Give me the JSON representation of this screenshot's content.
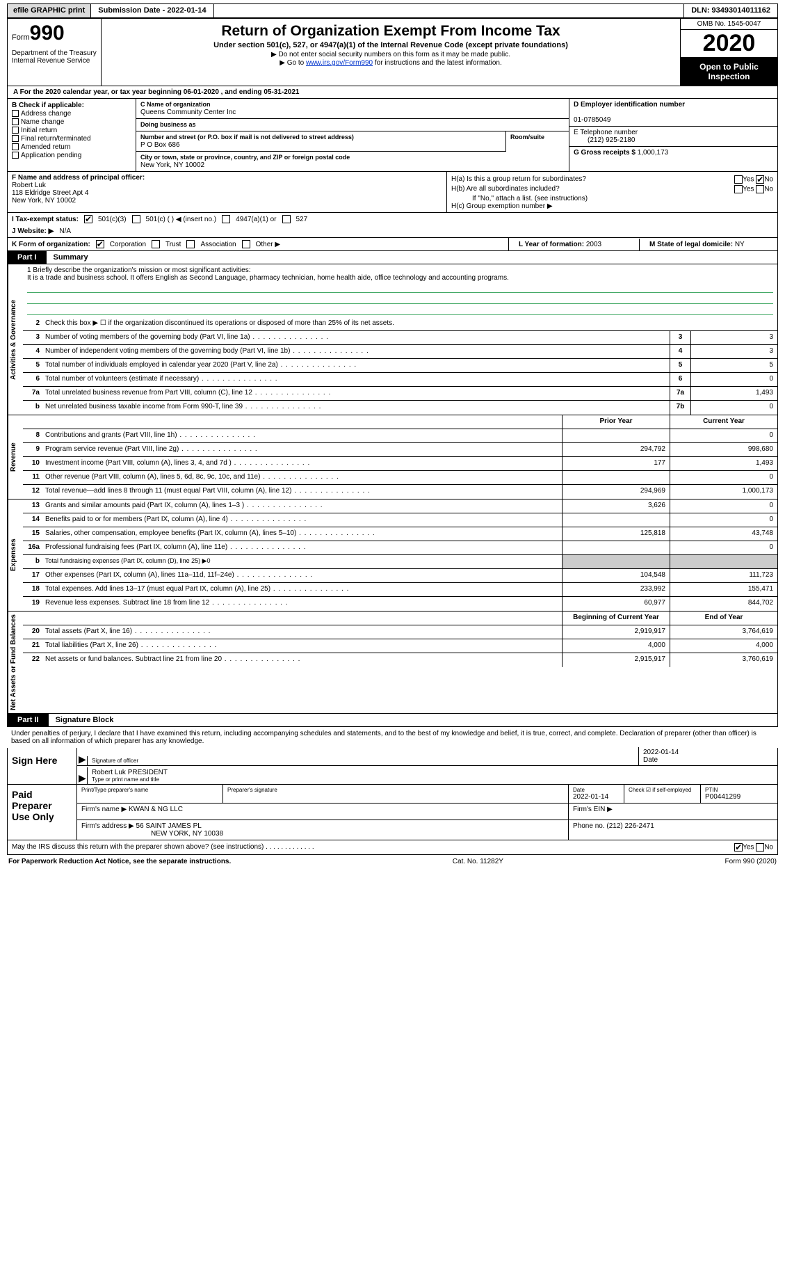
{
  "topbar": {
    "efile_btn": "efile GRAPHIC print",
    "submission": "Submission Date - 2022-01-14",
    "dln": "DLN: 93493014011162"
  },
  "header": {
    "form_prefix": "Form",
    "form_num": "990",
    "dept": "Department of the Treasury\nInternal Revenue Service",
    "title": "Return of Organization Exempt From Income Tax",
    "sub": "Under section 501(c), 527, or 4947(a)(1) of the Internal Revenue Code (except private foundations)",
    "note1": "▶ Do not enter social security numbers on this form as it may be made public.",
    "note2_pre": "▶ Go to ",
    "note2_link": "www.irs.gov/Form990",
    "note2_post": " for instructions and the latest information.",
    "omb": "OMB No. 1545-0047",
    "year": "2020",
    "open": "Open to Public Inspection"
  },
  "period": "A For the 2020 calendar year, or tax year beginning 06-01-2020    , and ending 05-31-2021",
  "B": {
    "title": "B Check if applicable:",
    "items": [
      "Address change",
      "Name change",
      "Initial return",
      "Final return/terminated",
      "Amended return",
      "Application pending"
    ]
  },
  "C": {
    "name_label": "C Name of organization",
    "name": "Queens Community Center Inc",
    "dba_label": "Doing business as",
    "addr_label": "Number and street (or P.O. box if mail is not delivered to street address)",
    "room_label": "Room/suite",
    "addr": "P O Box 686",
    "city_label": "City or town, state or province, country, and ZIP or foreign postal code",
    "city": "New York, NY   10002"
  },
  "D": {
    "label": "D Employer identification number",
    "val": "01-0785049"
  },
  "E": {
    "label": "E Telephone number",
    "val": "(212) 925-2180"
  },
  "G": {
    "label": "G Gross receipts $",
    "val": "1,000,173"
  },
  "F": {
    "label": "F  Name and address of principal officer:",
    "name": "Robert Luk",
    "addr1": "118 Eldridge Street Apt 4",
    "addr2": "New York, NY  10002"
  },
  "H": {
    "a": "H(a)  Is this a group return for subordinates?",
    "b": "H(b)  Are all subordinates included?",
    "b_note": "If \"No,\" attach a list. (see instructions)",
    "c": "H(c)  Group exemption number ▶",
    "yes": "Yes",
    "no": "No"
  },
  "I": {
    "label": "I   Tax-exempt status:",
    "o1": "501(c)(3)",
    "o2": "501(c) (    ) ◀ (insert no.)",
    "o3": "4947(a)(1) or",
    "o4": "527"
  },
  "J": {
    "label": "J   Website: ▶",
    "val": "N/A"
  },
  "K": {
    "label": "K Form of organization:",
    "o1": "Corporation",
    "o2": "Trust",
    "o3": "Association",
    "o4": "Other ▶"
  },
  "L": {
    "label": "L Year of formation:",
    "val": "2003"
  },
  "M": {
    "label": "M State of legal domicile:",
    "val": "NY"
  },
  "parts": {
    "p1": "Part I",
    "p1_title": "Summary",
    "p2": "Part II",
    "p2_title": "Signature Block"
  },
  "vlabels": {
    "gov": "Activities & Governance",
    "rev": "Revenue",
    "exp": "Expenses",
    "net": "Net Assets or Fund Balances"
  },
  "mission": {
    "q": "1   Briefly describe the organization's mission or most significant activities:",
    "text": "It is a trade and business school. It offers English as Second Language, pharmacy technician, home health aide, office technology and accounting programs."
  },
  "gov_rows": [
    {
      "n": "2",
      "t": "Check this box ▶ ☐  if the organization discontinued its operations or disposed of more than 25% of its net assets."
    },
    {
      "n": "3",
      "t": "Number of voting members of the governing body (Part VI, line 1a)",
      "c": "3",
      "v": "3"
    },
    {
      "n": "4",
      "t": "Number of independent voting members of the governing body (Part VI, line 1b)",
      "c": "4",
      "v": "3"
    },
    {
      "n": "5",
      "t": "Total number of individuals employed in calendar year 2020 (Part V, line 2a)",
      "c": "5",
      "v": "5"
    },
    {
      "n": "6",
      "t": "Total number of volunteers (estimate if necessary)",
      "c": "6",
      "v": "0"
    },
    {
      "n": "7a",
      "t": "Total unrelated business revenue from Part VIII, column (C), line 12",
      "c": "7a",
      "v": "1,493"
    },
    {
      "n": "b",
      "t": "Net unrelated business taxable income from Form 990-T, line 39",
      "c": "7b",
      "v": "0"
    }
  ],
  "col_hdr": {
    "prior": "Prior Year",
    "curr": "Current Year",
    "beg": "Beginning of Current Year",
    "end": "End of Year"
  },
  "rev_rows": [
    {
      "n": "8",
      "t": "Contributions and grants (Part VIII, line 1h)",
      "p": "",
      "c": "0"
    },
    {
      "n": "9",
      "t": "Program service revenue (Part VIII, line 2g)",
      "p": "294,792",
      "c": "998,680"
    },
    {
      "n": "10",
      "t": "Investment income (Part VIII, column (A), lines 3, 4, and 7d )",
      "p": "177",
      "c": "1,493"
    },
    {
      "n": "11",
      "t": "Other revenue (Part VIII, column (A), lines 5, 6d, 8c, 9c, 10c, and 11e)",
      "p": "",
      "c": "0"
    },
    {
      "n": "12",
      "t": "Total revenue—add lines 8 through 11 (must equal Part VIII, column (A), line 12)",
      "p": "294,969",
      "c": "1,000,173"
    }
  ],
  "exp_rows": [
    {
      "n": "13",
      "t": "Grants and similar amounts paid (Part IX, column (A), lines 1–3 )",
      "p": "3,626",
      "c": "0"
    },
    {
      "n": "14",
      "t": "Benefits paid to or for members (Part IX, column (A), line 4)",
      "p": "",
      "c": "0"
    },
    {
      "n": "15",
      "t": "Salaries, other compensation, employee benefits (Part IX, column (A), lines 5–10)",
      "p": "125,818",
      "c": "43,748"
    },
    {
      "n": "16a",
      "t": "Professional fundraising fees (Part IX, column (A), line 11e)",
      "p": "",
      "c": "0"
    },
    {
      "n": "b",
      "t": "Total fundraising expenses (Part IX, column (D), line 25) ▶0",
      "gray": true
    },
    {
      "n": "17",
      "t": "Other expenses (Part IX, column (A), lines 11a–11d, 11f–24e)",
      "p": "104,548",
      "c": "111,723"
    },
    {
      "n": "18",
      "t": "Total expenses. Add lines 13–17 (must equal Part IX, column (A), line 25)",
      "p": "233,992",
      "c": "155,471"
    },
    {
      "n": "19",
      "t": "Revenue less expenses. Subtract line 18 from line 12",
      "p": "60,977",
      "c": "844,702"
    }
  ],
  "net_rows": [
    {
      "n": "20",
      "t": "Total assets (Part X, line 16)",
      "p": "2,919,917",
      "c": "3,764,619"
    },
    {
      "n": "21",
      "t": "Total liabilities (Part X, line 26)",
      "p": "4,000",
      "c": "4,000"
    },
    {
      "n": "22",
      "t": "Net assets or fund balances. Subtract line 21 from line 20",
      "p": "2,915,917",
      "c": "3,760,619"
    }
  ],
  "sig": {
    "penalty": "Under penalties of perjury, I declare that I have examined this return, including accompanying schedules and statements, and to the best of my knowledge and belief, it is true, correct, and complete. Declaration of preparer (other than officer) is based on all information of which preparer has any knowledge.",
    "sign_here": "Sign Here",
    "sig_officer_lbl": "Signature of officer",
    "date_lbl": "Date",
    "sig_date": "2022-01-14",
    "name_title": "Robert Luk  PRESIDENT",
    "name_lbl": "Type or print name and title"
  },
  "prep": {
    "title": "Paid Preparer Use Only",
    "h1": "Print/Type preparer's name",
    "h2": "Preparer's signature",
    "h3": "Date",
    "h3v": "2022-01-14",
    "h4": "Check ☑ if self-employed",
    "h5": "PTIN",
    "h5v": "P00441299",
    "firm_name_lbl": "Firm's name   ▶",
    "firm_name": "KWAN & NG LLC",
    "firm_ein_lbl": "Firm's EIN ▶",
    "firm_addr_lbl": "Firm's address ▶",
    "firm_addr": "56 SAINT JAMES PL",
    "firm_city": "NEW YORK, NY  10038",
    "phone_lbl": "Phone no.",
    "phone": "(212) 226-2471"
  },
  "discuss": "May the IRS discuss this return with the preparer shown above? (see instructions)",
  "footer": {
    "left": "For Paperwork Reduction Act Notice, see the separate instructions.",
    "mid": "Cat. No. 11282Y",
    "right": "Form 990 (2020)"
  },
  "colors": {
    "accent": "#000000",
    "gray": "#cccccc",
    "link": "#0033cc",
    "bg": "#ffffff",
    "line_green": "#55aa77"
  }
}
